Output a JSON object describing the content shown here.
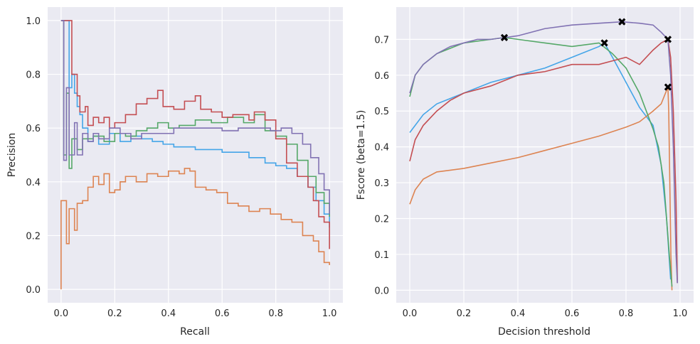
{
  "chart_data": [
    {
      "type": "line",
      "step": true,
      "xlabel": "Recall",
      "ylabel": "Precision",
      "xlim": [
        -0.05,
        1.05
      ],
      "ylim": [
        -0.05,
        1.05
      ],
      "xticks": [
        "0.0",
        "0.2",
        "0.4",
        "0.6",
        "0.8",
        "1.0"
      ],
      "yticks": [
        "0.0",
        "0.2",
        "0.4",
        "0.6",
        "0.8",
        "1.0"
      ],
      "grid": true,
      "series": [
        {
          "color": "#44a5e8",
          "x": [
            0,
            0.03,
            0.04,
            0.05,
            0.06,
            0.07,
            0.08,
            0.1,
            0.12,
            0.14,
            0.18,
            0.22,
            0.26,
            0.3,
            0.34,
            0.38,
            0.42,
            0.5,
            0.6,
            0.7,
            0.76,
            0.8,
            0.84,
            0.88,
            0.92,
            0.95,
            0.98,
            1.0
          ],
          "y": [
            1.0,
            0.75,
            0.8,
            0.73,
            0.68,
            0.65,
            0.6,
            0.55,
            0.57,
            0.54,
            0.58,
            0.55,
            0.57,
            0.56,
            0.55,
            0.54,
            0.53,
            0.52,
            0.51,
            0.49,
            0.47,
            0.46,
            0.45,
            0.42,
            0.38,
            0.33,
            0.28,
            0.23
          ]
        },
        {
          "color": "#dd8452",
          "x": [
            0,
            0,
            0.02,
            0.03,
            0.04,
            0.05,
            0.06,
            0.08,
            0.1,
            0.12,
            0.14,
            0.16,
            0.18,
            0.2,
            0.22,
            0.24,
            0.28,
            0.32,
            0.36,
            0.4,
            0.44,
            0.46,
            0.48,
            0.5,
            0.54,
            0.58,
            0.62,
            0.66,
            0.7,
            0.74,
            0.78,
            0.82,
            0.86,
            0.9,
            0.94,
            0.96,
            0.98,
            1.0
          ],
          "y": [
            0,
            0.33,
            0.17,
            0.3,
            0.3,
            0.22,
            0.32,
            0.33,
            0.38,
            0.42,
            0.39,
            0.43,
            0.36,
            0.37,
            0.4,
            0.42,
            0.4,
            0.43,
            0.42,
            0.44,
            0.43,
            0.45,
            0.44,
            0.38,
            0.37,
            0.36,
            0.32,
            0.31,
            0.29,
            0.3,
            0.28,
            0.26,
            0.25,
            0.2,
            0.18,
            0.14,
            0.1,
            0.09
          ]
        },
        {
          "color": "#55a868",
          "x": [
            0,
            0.01,
            0.02,
            0.03,
            0.04,
            0.06,
            0.08,
            0.12,
            0.16,
            0.2,
            0.24,
            0.28,
            0.32,
            0.36,
            0.4,
            0.44,
            0.5,
            0.56,
            0.62,
            0.68,
            0.72,
            0.76,
            0.8,
            0.84,
            0.88,
            0.92,
            0.95,
            0.98,
            1.0
          ],
          "y": [
            1.0,
            0.5,
            0.73,
            0.45,
            0.56,
            0.52,
            0.56,
            0.57,
            0.55,
            0.58,
            0.57,
            0.59,
            0.6,
            0.62,
            0.6,
            0.61,
            0.63,
            0.62,
            0.64,
            0.62,
            0.65,
            0.59,
            0.57,
            0.54,
            0.48,
            0.42,
            0.36,
            0.32,
            0.27
          ]
        },
        {
          "color": "#c44e52",
          "x": [
            0,
            0.04,
            0.06,
            0.07,
            0.09,
            0.1,
            0.12,
            0.14,
            0.16,
            0.18,
            0.2,
            0.24,
            0.28,
            0.32,
            0.36,
            0.38,
            0.42,
            0.46,
            0.5,
            0.52,
            0.56,
            0.6,
            0.64,
            0.7,
            0.72,
            0.76,
            0.8,
            0.84,
            0.88,
            0.92,
            0.94,
            0.96,
            0.98,
            1.0
          ],
          "y": [
            1.0,
            0.8,
            0.72,
            0.66,
            0.68,
            0.61,
            0.64,
            0.62,
            0.64,
            0.6,
            0.62,
            0.65,
            0.69,
            0.71,
            0.74,
            0.68,
            0.67,
            0.7,
            0.72,
            0.67,
            0.66,
            0.64,
            0.65,
            0.63,
            0.66,
            0.63,
            0.56,
            0.47,
            0.42,
            0.38,
            0.33,
            0.27,
            0.25,
            0.15
          ]
        },
        {
          "color": "#8172b3",
          "x": [
            0,
            0.01,
            0.02,
            0.03,
            0.05,
            0.06,
            0.08,
            0.1,
            0.12,
            0.14,
            0.18,
            0.22,
            0.26,
            0.3,
            0.36,
            0.42,
            0.5,
            0.6,
            0.66,
            0.72,
            0.78,
            0.82,
            0.86,
            0.9,
            0.93,
            0.96,
            0.98,
            1.0
          ],
          "y": [
            1.0,
            0.48,
            0.75,
            0.5,
            0.62,
            0.5,
            0.58,
            0.55,
            0.58,
            0.56,
            0.6,
            0.58,
            0.56,
            0.58,
            0.58,
            0.6,
            0.6,
            0.59,
            0.6,
            0.6,
            0.59,
            0.6,
            0.58,
            0.54,
            0.49,
            0.43,
            0.37,
            0.28
          ]
        }
      ]
    },
    {
      "type": "line",
      "xlabel": "Decision threshold",
      "ylabel": "Fscore (beta=1.5)",
      "xlim": [
        -0.05,
        1.05
      ],
      "ylim": [
        -0.035,
        0.79
      ],
      "xticks": [
        "0.0",
        "0.2",
        "0.4",
        "0.6",
        "0.8",
        "1.0"
      ],
      "yticks": [
        "0.0",
        "0.1",
        "0.2",
        "0.3",
        "0.4",
        "0.5",
        "0.6",
        "0.7"
      ],
      "grid": true,
      "series": [
        {
          "color": "#44a5e8",
          "x": [
            0,
            0.05,
            0.1,
            0.2,
            0.3,
            0.4,
            0.5,
            0.6,
            0.7,
            0.72,
            0.75,
            0.8,
            0.85,
            0.9,
            0.93,
            0.95,
            0.965
          ],
          "y": [
            0.44,
            0.49,
            0.52,
            0.55,
            0.58,
            0.6,
            0.62,
            0.65,
            0.68,
            0.69,
            0.65,
            0.58,
            0.51,
            0.46,
            0.35,
            0.2,
            0.03
          ],
          "best": [
            0.72,
            0.69
          ]
        },
        {
          "color": "#dd8452",
          "x": [
            0,
            0.02,
            0.05,
            0.1,
            0.2,
            0.3,
            0.4,
            0.5,
            0.6,
            0.7,
            0.8,
            0.85,
            0.9,
            0.93,
            0.955,
            0.958,
            0.962,
            0.966,
            0.97
          ],
          "y": [
            0.24,
            0.28,
            0.31,
            0.33,
            0.34,
            0.355,
            0.37,
            0.39,
            0.41,
            0.43,
            0.455,
            0.47,
            0.5,
            0.52,
            0.567,
            0.5,
            0.3,
            0.1,
            0.0
          ],
          "best": [
            0.955,
            0.567
          ]
        },
        {
          "color": "#55a868",
          "x": [
            0,
            0.02,
            0.05,
            0.1,
            0.2,
            0.3,
            0.35,
            0.4,
            0.5,
            0.6,
            0.7,
            0.75,
            0.8,
            0.85,
            0.9,
            0.92,
            0.94,
            0.96,
            0.97
          ],
          "y": [
            0.54,
            0.6,
            0.63,
            0.66,
            0.69,
            0.7,
            0.705,
            0.7,
            0.69,
            0.68,
            0.69,
            0.66,
            0.62,
            0.55,
            0.45,
            0.4,
            0.3,
            0.1,
            0.01
          ],
          "best": [
            0.35,
            0.705
          ]
        },
        {
          "color": "#c44e52",
          "x": [
            0,
            0.02,
            0.05,
            0.1,
            0.15,
            0.2,
            0.3,
            0.4,
            0.5,
            0.6,
            0.7,
            0.75,
            0.8,
            0.85,
            0.9,
            0.93,
            0.955,
            0.965,
            0.975,
            0.985,
            0.99
          ],
          "y": [
            0.36,
            0.42,
            0.46,
            0.5,
            0.53,
            0.55,
            0.57,
            0.6,
            0.61,
            0.63,
            0.63,
            0.64,
            0.65,
            0.63,
            0.67,
            0.69,
            0.7,
            0.65,
            0.5,
            0.25,
            0.02
          ],
          "best": [
            0.955,
            0.7
          ]
        },
        {
          "color": "#8172b3",
          "x": [
            0,
            0.02,
            0.05,
            0.1,
            0.15,
            0.2,
            0.25,
            0.3,
            0.35,
            0.4,
            0.5,
            0.6,
            0.7,
            0.785,
            0.85,
            0.9,
            0.93,
            0.955,
            0.965,
            0.975,
            0.985,
            0.99
          ],
          "y": [
            0.55,
            0.6,
            0.63,
            0.66,
            0.68,
            0.69,
            0.7,
            0.7,
            0.705,
            0.71,
            0.73,
            0.74,
            0.745,
            0.749,
            0.745,
            0.74,
            0.72,
            0.7,
            0.6,
            0.4,
            0.1,
            0.02
          ],
          "best": [
            0.785,
            0.749
          ]
        }
      ]
    }
  ]
}
